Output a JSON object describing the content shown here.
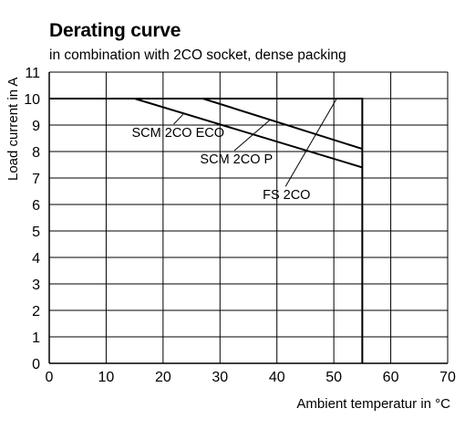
{
  "chart_data": {
    "type": "line",
    "title": "Derating curve",
    "subtitle": "in combination with 2CO socket, dense packing",
    "xlabel": "Ambient temperatur in °C",
    "ylabel": "Load  current in A",
    "xlim": [
      0,
      70
    ],
    "ylim": [
      0,
      11
    ],
    "xticks": [
      "0",
      "10",
      "20",
      "30",
      "40",
      "50",
      "60",
      "70"
    ],
    "yticks": [
      "0",
      "1",
      "2",
      "3",
      "4",
      "5",
      "6",
      "7",
      "8",
      "9",
      "10",
      "11"
    ],
    "grid": true,
    "series": [
      {
        "name": "FS 2CO",
        "x": [
          0,
          55,
          55
        ],
        "y": [
          10,
          10,
          0
        ]
      },
      {
        "name": "SCM 2CO P",
        "x": [
          0,
          27,
          55
        ],
        "y": [
          10,
          10,
          8.1
        ]
      },
      {
        "name": "SCM 2CO ECO",
        "x": [
          0,
          15,
          55
        ],
        "y": [
          10,
          10,
          7.4
        ]
      }
    ],
    "annotations": [
      {
        "text": "SCM 2CO ECO",
        "label_at": [
          14.5,
          8.55
        ],
        "points_to": [
          23.5,
          9.4
        ]
      },
      {
        "text": "SCM 2CO P",
        "label_at": [
          26.5,
          7.55
        ],
        "points_to": [
          38.8,
          9.2
        ]
      },
      {
        "text": "FS 2CO",
        "label_at": [
          37.5,
          6.2
        ],
        "points_to": [
          50.5,
          10
        ]
      }
    ]
  }
}
